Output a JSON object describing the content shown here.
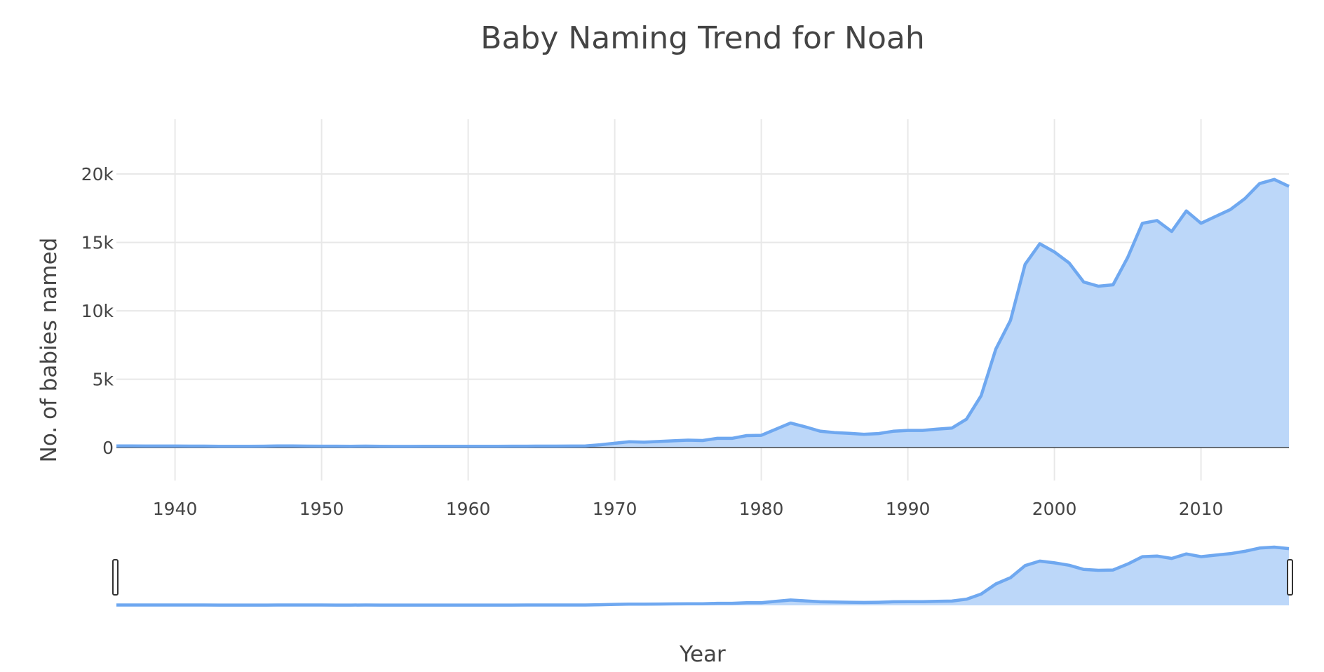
{
  "chart_data": {
    "type": "area",
    "title": "Baby Naming Trend for Noah",
    "xlabel": "Year",
    "ylabel": "No. of babies named",
    "xlim": [
      1936,
      2016
    ],
    "ylim": [
      -2400,
      24000
    ],
    "x_ticks": [
      "1940",
      "1950",
      "1960",
      "1970",
      "1980",
      "1990",
      "2000",
      "2010"
    ],
    "y_ticks": [
      "0",
      "5k",
      "10k",
      "15k",
      "20k"
    ],
    "grid": true,
    "range_slider": true,
    "colors": {
      "line": "#6fa8f0",
      "fill": "#bcd7f9",
      "zero_line": "#444444",
      "handle": "#333333"
    },
    "x": [
      1936,
      1937,
      1938,
      1939,
      1940,
      1941,
      1942,
      1943,
      1944,
      1945,
      1946,
      1947,
      1948,
      1949,
      1950,
      1951,
      1952,
      1953,
      1954,
      1955,
      1956,
      1957,
      1958,
      1959,
      1960,
      1961,
      1962,
      1963,
      1964,
      1965,
      1966,
      1967,
      1968,
      1969,
      1970,
      1971,
      1972,
      1973,
      1974,
      1975,
      1976,
      1977,
      1978,
      1979,
      1980,
      1981,
      1982,
      1983,
      1984,
      1985,
      1986,
      1987,
      1988,
      1989,
      1990,
      1991,
      1992,
      1993,
      1994,
      1995,
      1996,
      1997,
      1998,
      1999,
      2000,
      2001,
      2002,
      2003,
      2004,
      2005,
      2006,
      2007,
      2008,
      2009,
      2010,
      2011,
      2012,
      2013,
      2014,
      2015,
      2016
    ],
    "values": [
      120,
      120,
      118,
      115,
      115,
      112,
      110,
      100,
      100,
      100,
      105,
      125,
      120,
      110,
      108,
      105,
      100,
      110,
      95,
      90,
      92,
      94,
      96,
      97,
      100,
      102,
      104,
      106,
      108,
      110,
      112,
      115,
      120,
      210,
      320,
      430,
      400,
      450,
      500,
      550,
      520,
      680,
      680,
      880,
      900,
      1350,
      1800,
      1520,
      1210,
      1100,
      1050,
      980,
      1030,
      1200,
      1260,
      1260,
      1350,
      1430,
      2080,
      3800,
      7200,
      9300,
      13400,
      14900,
      14300,
      13500,
      12100,
      11800,
      11900,
      13900,
      16400,
      16600,
      15800,
      17300,
      16400,
      16900,
      17400,
      18200,
      19300,
      19600,
      19100
    ]
  }
}
